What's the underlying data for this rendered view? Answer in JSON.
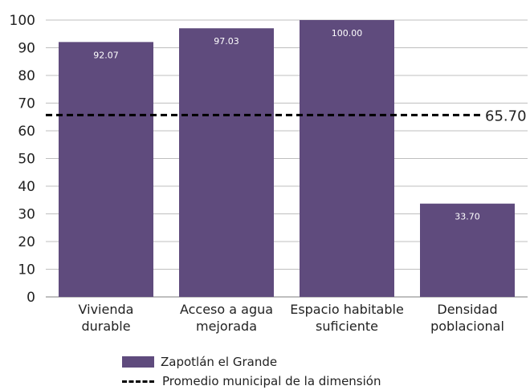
{
  "chart_data": {
    "type": "bar",
    "categories": [
      [
        "Vivienda",
        "durable"
      ],
      [
        "Acceso a agua",
        "mejorada"
      ],
      [
        "Espacio habitable",
        "suficiente"
      ],
      [
        "Densidad",
        "poblacional"
      ]
    ],
    "series": [
      {
        "name": "Zapotlán el Grande",
        "values": [
          92.07,
          97.03,
          100.0,
          33.7
        ],
        "labels": [
          "92.07",
          "97.03",
          "100.00",
          "33.70"
        ]
      }
    ],
    "reference_line": {
      "name": "Promedio municipal de la dimensión",
      "value": 65.7,
      "label": "65.70"
    },
    "ylim": [
      0,
      100
    ],
    "yticks": [
      0,
      10,
      20,
      30,
      40,
      50,
      60,
      70,
      80,
      90,
      100
    ],
    "grid": true,
    "legend_position": "bottom",
    "colors": {
      "bar": "#5f4b7d",
      "grid": "#bfbfbf",
      "reference": "#000000"
    }
  }
}
